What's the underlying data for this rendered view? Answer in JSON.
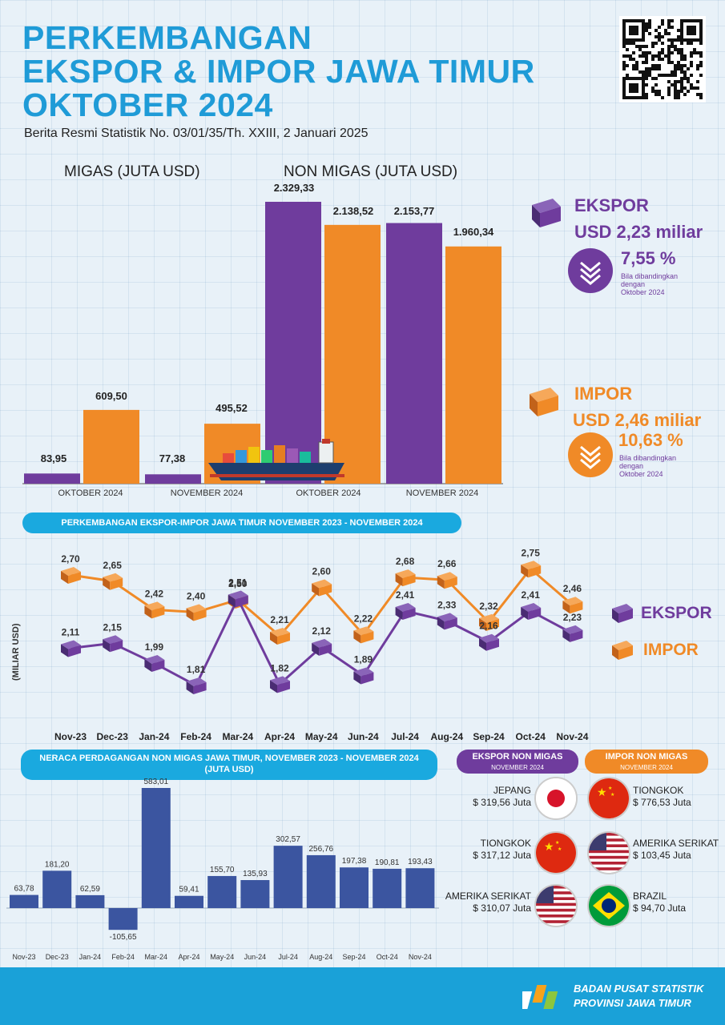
{
  "header": {
    "title_lines": [
      "PERKEMBANGAN",
      "EKSPOR & IMPOR JAWA TIMUR",
      "OKTOBER 2024"
    ],
    "subtitle": "Berita Resmi Statistik No. 03/01/35/Th. XXIII, 2 Januari 2025"
  },
  "top_chart": {
    "migas_label": "MIGAS (JUTA USD)",
    "nonmigas_label": "NON MIGAS (JUTA USD)",
    "categories": [
      "OKTOBER 2024",
      "NOVEMBER 2024",
      "OKTOBER 2024",
      "NOVEMBER 2024"
    ],
    "migas": {
      "ekspor": [
        "83,95",
        "77,38"
      ],
      "impor": [
        "609,50",
        "495,52"
      ]
    },
    "nonmigas": {
      "ekspor": [
        "2.329,33",
        "2.153,77"
      ],
      "impor": [
        "2.138,52",
        "1.960,34"
      ]
    }
  },
  "summary": {
    "ekspor_label": "EKSPOR",
    "ekspor_value": "USD 2,23 miliar",
    "ekspor_pct": "7,55 %",
    "ekspor_note": [
      "Bila dibandingkan",
      "dengan",
      "Oktober 2024"
    ],
    "impor_label": "IMPOR",
    "impor_value": "USD 2,46 miliar",
    "impor_pct": "10,63 %",
    "impor_note": [
      "Bila dibandingkan",
      "dengan",
      "Oktober 2024"
    ]
  },
  "line_section": {
    "title": "PERKEMBANGAN EKSPOR-IMPOR JAWA TIMUR NOVEMBER 2023 - NOVEMBER 2024",
    "ylabel": "(MILIAR USD)",
    "legend_ekspor": "EKSPOR",
    "legend_impor": "IMPOR"
  },
  "balance_section": {
    "title_line1": "NERACA PERDAGANGAN NON MIGAS JAWA TIMUR, NOVEMBER 2023 - NOVEMBER 2024",
    "title_line2": "(JUTA USD)"
  },
  "partners": {
    "ekspor_tag": "EKSPOR NON MIGAS",
    "ekspor_sub": "NOVEMBER 2024",
    "impor_tag": "IMPOR NON MIGAS",
    "impor_sub": "NOVEMBER 2024",
    "ekspor": [
      {
        "name": "JEPANG",
        "value": "$ 319,56 Juta",
        "flag": "japan-flag-icon"
      },
      {
        "name": "TIONGKOK",
        "value": "$ 317,12 Juta",
        "flag": "china-flag-icon"
      },
      {
        "name": "AMERIKA SERIKAT",
        "value": "$ 310,07 Juta",
        "flag": "usa-flag-icon"
      }
    ],
    "impor": [
      {
        "name": "TIONGKOK",
        "value": "$ 776,53 Juta",
        "flag": "china-flag-icon"
      },
      {
        "name": "AMERIKA SERIKAT",
        "value": "$ 103,45 Juta",
        "flag": "usa-flag-icon"
      },
      {
        "name": "BRAZIL",
        "value": "$ 94,70 Juta",
        "flag": "brazil-flag-icon"
      }
    ]
  },
  "footer": {
    "line1": "BADAN PUSAT STATISTIK",
    "line2": "PROVINSI JAWA TIMUR"
  },
  "colors": {
    "purple": "#6f3c9d",
    "orange": "#f08a27",
    "blue": "#1aa9df",
    "navy": "#3b55a0"
  },
  "chart_data": [
    {
      "type": "bar",
      "title": "",
      "categories": [
        "MIGAS OKTOBER 2024",
        "MIGAS NOVEMBER 2024",
        "NON MIGAS OKTOBER 2024",
        "NON MIGAS NOVEMBER 2024"
      ],
      "series": [
        {
          "name": "EKSPOR",
          "values": [
            83.95,
            77.38,
            2329.33,
            2153.77
          ]
        },
        {
          "name": "IMPOR",
          "values": [
            609.5,
            495.52,
            2138.52,
            1960.34
          ]
        }
      ],
      "ylabel": "JUTA USD"
    },
    {
      "type": "line",
      "title": "PERKEMBANGAN EKSPOR-IMPOR JAWA TIMUR NOVEMBER 2023 - NOVEMBER 2024",
      "x": [
        "Nov-23",
        "Dec-23",
        "Jan-24",
        "Feb-24",
        "Mar-24",
        "Apr-24",
        "May-24",
        "Jun-24",
        "Jul-24",
        "Aug-24",
        "Sep-24",
        "Oct-24",
        "Nov-24"
      ],
      "series": [
        {
          "name": "IMPOR",
          "values": [
            2.7,
            2.65,
            2.42,
            2.4,
            2.5,
            2.21,
            2.6,
            2.22,
            2.68,
            2.66,
            2.32,
            2.75,
            2.46
          ],
          "labels": [
            "2,70",
            "2,65",
            "2,42",
            "2,40",
            "2,50",
            "2,21",
            "2,60",
            "2,22",
            "2,68",
            "2,66",
            "2,32",
            "2,75",
            "2,46"
          ]
        },
        {
          "name": "EKSPOR",
          "values": [
            2.11,
            2.15,
            1.99,
            1.81,
            2.51,
            1.82,
            2.12,
            1.89,
            2.41,
            2.33,
            2.16,
            2.41,
            2.23
          ],
          "labels": [
            "2,11",
            "2,15",
            "1,99",
            "1,81",
            "2,51",
            "1,82",
            "2,12",
            "1,89",
            "2,41",
            "2,33",
            "2,16",
            "2,41",
            "2,23"
          ]
        }
      ],
      "ylabel": "(MILIAR USD)"
    },
    {
      "type": "bar",
      "title": "NERACA PERDAGANGAN NON MIGAS JAWA TIMUR, NOVEMBER 2023 - NOVEMBER 2024",
      "categories": [
        "Nov-23",
        "Dec-23",
        "Jan-24",
        "Feb-24",
        "Mar-24",
        "Apr-24",
        "May-24",
        "Jun-24",
        "Jul-24",
        "Aug-24",
        "Sep-24",
        "Oct-24",
        "Nov-24"
      ],
      "values": [
        63.78,
        181.2,
        62.59,
        -105.65,
        583.01,
        59.41,
        155.7,
        135.93,
        302.57,
        256.76,
        197.38,
        190.81,
        193.43
      ],
      "labels": [
        "63,78",
        "181,20",
        "62,59",
        "-105,65",
        "583,01",
        "59,41",
        "155,70",
        "135,93",
        "302,57",
        "256,76",
        "197,38",
        "190,81",
        "193,43"
      ],
      "ylabel": "(JUTA USD)"
    }
  ]
}
